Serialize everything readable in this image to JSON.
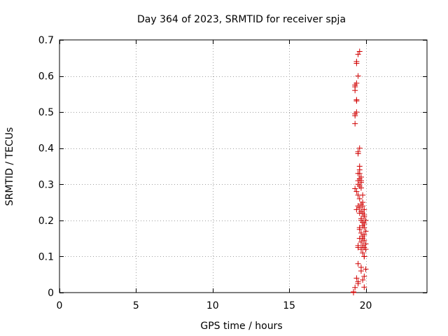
{
  "chart_data": {
    "type": "scatter",
    "title": "Day 364 of 2023, SRMTID for receiver spja",
    "xlabel": "GPS time / hours",
    "ylabel": "SRMTID / TECUs",
    "xlim": [
      0,
      24
    ],
    "ylim": [
      0,
      0.7
    ],
    "xticks": [
      0,
      5,
      10,
      15,
      20
    ],
    "xtick_labels": [
      "0",
      "5",
      "10",
      "15",
      "20"
    ],
    "yticks": [
      0,
      0.1,
      0.2,
      0.3,
      0.4,
      0.5,
      0.6,
      0.7
    ],
    "ytick_labels": [
      "0",
      "0.1",
      "0.2",
      "0.3",
      "0.4",
      "0.5",
      "0.6",
      "0.7"
    ],
    "grid": true,
    "marker": "plus",
    "color": "#d00000",
    "series": [
      {
        "name": "SRMTID",
        "x": [
          19.2,
          19.2,
          19.3,
          19.3,
          19.3,
          19.3,
          19.4,
          19.4,
          19.4,
          19.3,
          19.3,
          19.3,
          19.4,
          19.5,
          19.4,
          19.4,
          19.5,
          19.6,
          19.5,
          19.6,
          19.5,
          19.6,
          19.6,
          19.5,
          19.7,
          19.6,
          19.7,
          19.5,
          19.7,
          19.6,
          19.7,
          19.3,
          19.5,
          19.6,
          19.8,
          19.7,
          19.8,
          19.6,
          19.5,
          19.9,
          19.7,
          19.8,
          19.9,
          19.9,
          19.7,
          20.0,
          19.8,
          19.9,
          19.8,
          19.9,
          19.6,
          20.0,
          19.7,
          19.9,
          19.8,
          19.6,
          19.9,
          19.7,
          20.0,
          19.8,
          19.9,
          20.0,
          19.7,
          19.5,
          19.5,
          19.8,
          19.9,
          19.5,
          19.7,
          20.0,
          19.4,
          19.5,
          19.8,
          19.5,
          19.9,
          19.7,
          19.9,
          19.8,
          19.4,
          19.7,
          19.8,
          19.9,
          19.6,
          19.6,
          19.5,
          19.6,
          19.4,
          19.9
        ],
        "y": [
          0.002,
          0.0,
          0.014,
          0.468,
          0.49,
          0.495,
          0.5,
          0.531,
          0.534,
          0.56,
          0.57,
          0.575,
          0.58,
          0.6,
          0.635,
          0.64,
          0.66,
          0.668,
          0.39,
          0.4,
          0.385,
          0.35,
          0.34,
          0.33,
          0.32,
          0.315,
          0.305,
          0.3,
          0.31,
          0.295,
          0.29,
          0.288,
          0.27,
          0.26,
          0.25,
          0.245,
          0.24,
          0.235,
          0.24,
          0.23,
          0.225,
          0.22,
          0.215,
          0.21,
          0.205,
          0.2,
          0.195,
          0.19,
          0.185,
          0.18,
          0.175,
          0.17,
          0.165,
          0.16,
          0.155,
          0.15,
          0.145,
          0.14,
          0.135,
          0.13,
          0.125,
          0.12,
          0.12,
          0.125,
          0.13,
          0.11,
          0.1,
          0.08,
          0.07,
          0.065,
          0.04,
          0.03,
          0.035,
          0.025,
          0.015,
          0.06,
          0.19,
          0.27,
          0.28,
          0.2,
          0.15,
          0.1,
          0.22,
          0.18,
          0.31,
          0.33,
          0.23,
          0.045
        ]
      }
    ]
  }
}
